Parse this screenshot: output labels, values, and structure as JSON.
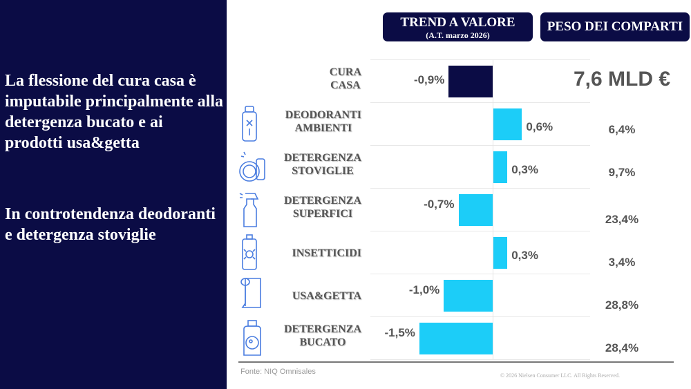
{
  "left_panel": {
    "paragraph1": "La flessione del cura casa è imputabile principalmente alla detergenza bucato e ai prodotti usa&getta",
    "paragraph2": "In controtendenza deodoranti e detergenza stoviglie"
  },
  "headers": {
    "trend_title": "TREND A VALORE",
    "trend_subtitle": "(A.T. marzo 2026)",
    "peso_title": "PESO DEI COMPARTI"
  },
  "total_value": "7,6 MLD €",
  "colors": {
    "navy": "#0b0c45",
    "cyan": "#1ccdf8",
    "icon_blue": "#4a7de0"
  },
  "chart_data": {
    "type": "bar",
    "orientation": "horizontal",
    "unit": "%",
    "categories": [
      "CURA CASA",
      "DEODORANTI AMBIENTI",
      "DETERGENZA STOVIGLIE",
      "DETERGENZA SUPERFICI",
      "INSETTICIDI",
      "USA&GETTA",
      "DETERGENZA BUCATO"
    ],
    "values": [
      -0.9,
      0.6,
      0.3,
      -0.7,
      0.3,
      -1.0,
      -1.5
    ],
    "labels": [
      "-0,9%",
      "0,6%",
      "0,3%",
      "-0,7%",
      "0,3%",
      "-1,0%",
      "-1,5%"
    ],
    "peso_labels": [
      "",
      "6,4%",
      "9,7%",
      "23,4%",
      "3,4%",
      "28,8%",
      "28,4%"
    ],
    "icons": [
      "",
      "spray-can-icon",
      "dishes-icon",
      "spray-bottle-icon",
      "insecticide-icon",
      "paper-roll-icon",
      "detergent-bottle-icon"
    ],
    "bar_colors": [
      "#0b0c45",
      "#1ccdf8",
      "#1ccdf8",
      "#1ccdf8",
      "#1ccdf8",
      "#1ccdf8",
      "#1ccdf8"
    ]
  },
  "footer": {
    "source": "Fonte: NIQ Omnisales",
    "copyright": "© 2026 Nielsen Consumer LLC. All Rights Reserved."
  }
}
